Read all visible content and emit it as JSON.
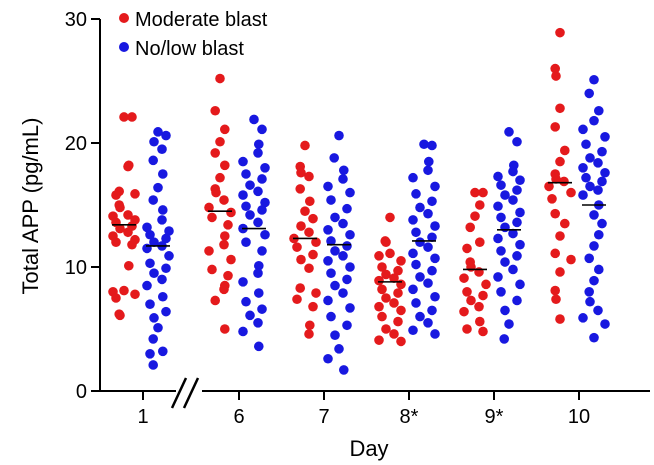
{
  "chart_data": {
    "type": "scatter",
    "ylabel": "Total APP (pg/mL)",
    "xlabel": "Day",
    "categories": [
      "1",
      "6",
      "7",
      "8*",
      "9*",
      "10"
    ],
    "ylim": [
      0,
      30
    ],
    "yticks": [
      "0",
      "10",
      "20",
      "30"
    ],
    "axis_break_marker": "//",
    "legend": {
      "position": "top-left"
    },
    "series": [
      {
        "name": "Moderate blast",
        "color": "#e41a1c",
        "medians": [
          13.4,
          14.5,
          12.3,
          8.8,
          9.8,
          16.8
        ],
        "values": [
          [
            22.1,
            22.1,
            18.2,
            18.1,
            16.1,
            15.9,
            15.8,
            15.0,
            14.8,
            14.2,
            14.1,
            13.8,
            13.6,
            13.3,
            13.1,
            12.8,
            12.5,
            12.2,
            12.0,
            11.8,
            10.1,
            8.1,
            8.0,
            7.8,
            7.5,
            6.2,
            6.1
          ],
          [
            25.2,
            22.6,
            21.1,
            20.1,
            19.2,
            18.2,
            17.2,
            16.3,
            16.0,
            15.4,
            14.8,
            14.4,
            14.0,
            13.4,
            12.5,
            11.8,
            11.3,
            10.6,
            9.8,
            9.3,
            8.5,
            8.2,
            7.3,
            5.0
          ],
          [
            19.8,
            18.1,
            17.6,
            17.3,
            16.3,
            15.3,
            14.5,
            13.9,
            13.3,
            12.8,
            12.3,
            12.0,
            11.6,
            11.0,
            10.6,
            9.9,
            8.3,
            7.9,
            7.4,
            6.8,
            5.3,
            4.6
          ],
          [
            14.0,
            12.1,
            12.0,
            11.1,
            10.9,
            10.5,
            10.0,
            9.7,
            9.4,
            9.1,
            8.9,
            8.6,
            8.2,
            7.9,
            7.5,
            7.1,
            6.8,
            6.5,
            6.0,
            5.6,
            5.0,
            4.6,
            4.1,
            4.0
          ],
          [
            16.0,
            16.0,
            15.0,
            14.1,
            13.2,
            12.0,
            11.5,
            10.4,
            10.0,
            9.6,
            9.1,
            8.6,
            8.0,
            7.7,
            7.3,
            6.8,
            6.4,
            5.6,
            5.0,
            4.8
          ],
          [
            28.9,
            26.0,
            25.4,
            22.8,
            21.3,
            19.4,
            18.5,
            17.5,
            17.1,
            16.9,
            16.5,
            16.0,
            15.5,
            14.3,
            13.5,
            12.5,
            11.1,
            10.6,
            9.6,
            8.1,
            7.4,
            5.8
          ]
        ]
      },
      {
        "name": "No/low blast",
        "color": "#1818e0",
        "medians": [
          11.7,
          13.1,
          11.8,
          12.1,
          13.0,
          15.0
        ],
        "values": [
          [
            20.9,
            20.6,
            20.1,
            19.5,
            18.6,
            17.5,
            16.4,
            15.4,
            14.6,
            13.8,
            13.2,
            12.9,
            12.6,
            12.3,
            12.0,
            11.7,
            11.5,
            10.9,
            10.3,
            9.9,
            9.5,
            9.0,
            8.5,
            7.6,
            7.0,
            6.4,
            5.9,
            5.1,
            4.2,
            3.2,
            3.0,
            2.1
          ],
          [
            21.9,
            21.1,
            19.9,
            19.2,
            18.5,
            18.0,
            17.5,
            17.1,
            16.6,
            16.1,
            15.8,
            15.2,
            14.9,
            14.6,
            14.2,
            13.6,
            13.1,
            12.6,
            12.0,
            11.3,
            10.1,
            9.5,
            8.8,
            7.9,
            7.2,
            6.6,
            6.1,
            5.5,
            4.8,
            3.6
          ],
          [
            20.6,
            18.8,
            17.8,
            17.1,
            16.5,
            16.0,
            15.4,
            14.7,
            14.0,
            13.5,
            13.0,
            12.6,
            12.1,
            11.7,
            11.3,
            10.9,
            10.5,
            10.0,
            9.5,
            9.0,
            8.5,
            7.9,
            7.3,
            6.7,
            6.0,
            5.3,
            4.5,
            3.4,
            2.6,
            1.7
          ],
          [
            19.9,
            19.8,
            18.5,
            17.8,
            17.2,
            16.5,
            15.9,
            15.3,
            14.8,
            14.3,
            13.8,
            13.3,
            12.8,
            12.4,
            12.0,
            11.6,
            11.1,
            10.7,
            10.2,
            9.7,
            9.2,
            8.7,
            8.2,
            7.6,
            7.1,
            6.5,
            6.0,
            5.5,
            4.9,
            4.6
          ],
          [
            20.9,
            20.1,
            18.2,
            17.7,
            17.3,
            17.0,
            16.6,
            16.2,
            15.8,
            15.4,
            14.9,
            14.4,
            14.0,
            13.6,
            13.2,
            12.7,
            12.3,
            11.8,
            11.3,
            10.9,
            10.4,
            9.8,
            9.2,
            8.6,
            8.0,
            7.3,
            6.5,
            5.4,
            4.2
          ],
          [
            25.1,
            24.0,
            22.6,
            21.8,
            21.1,
            20.5,
            19.9,
            19.3,
            18.8,
            18.4,
            18.0,
            17.6,
            17.2,
            16.9,
            16.5,
            16.2,
            15.8,
            15.0,
            14.2,
            13.5,
            12.6,
            11.7,
            10.7,
            9.8,
            8.9,
            8.0,
            7.2,
            6.5,
            5.9,
            5.4,
            4.3
          ]
        ]
      }
    ]
  }
}
